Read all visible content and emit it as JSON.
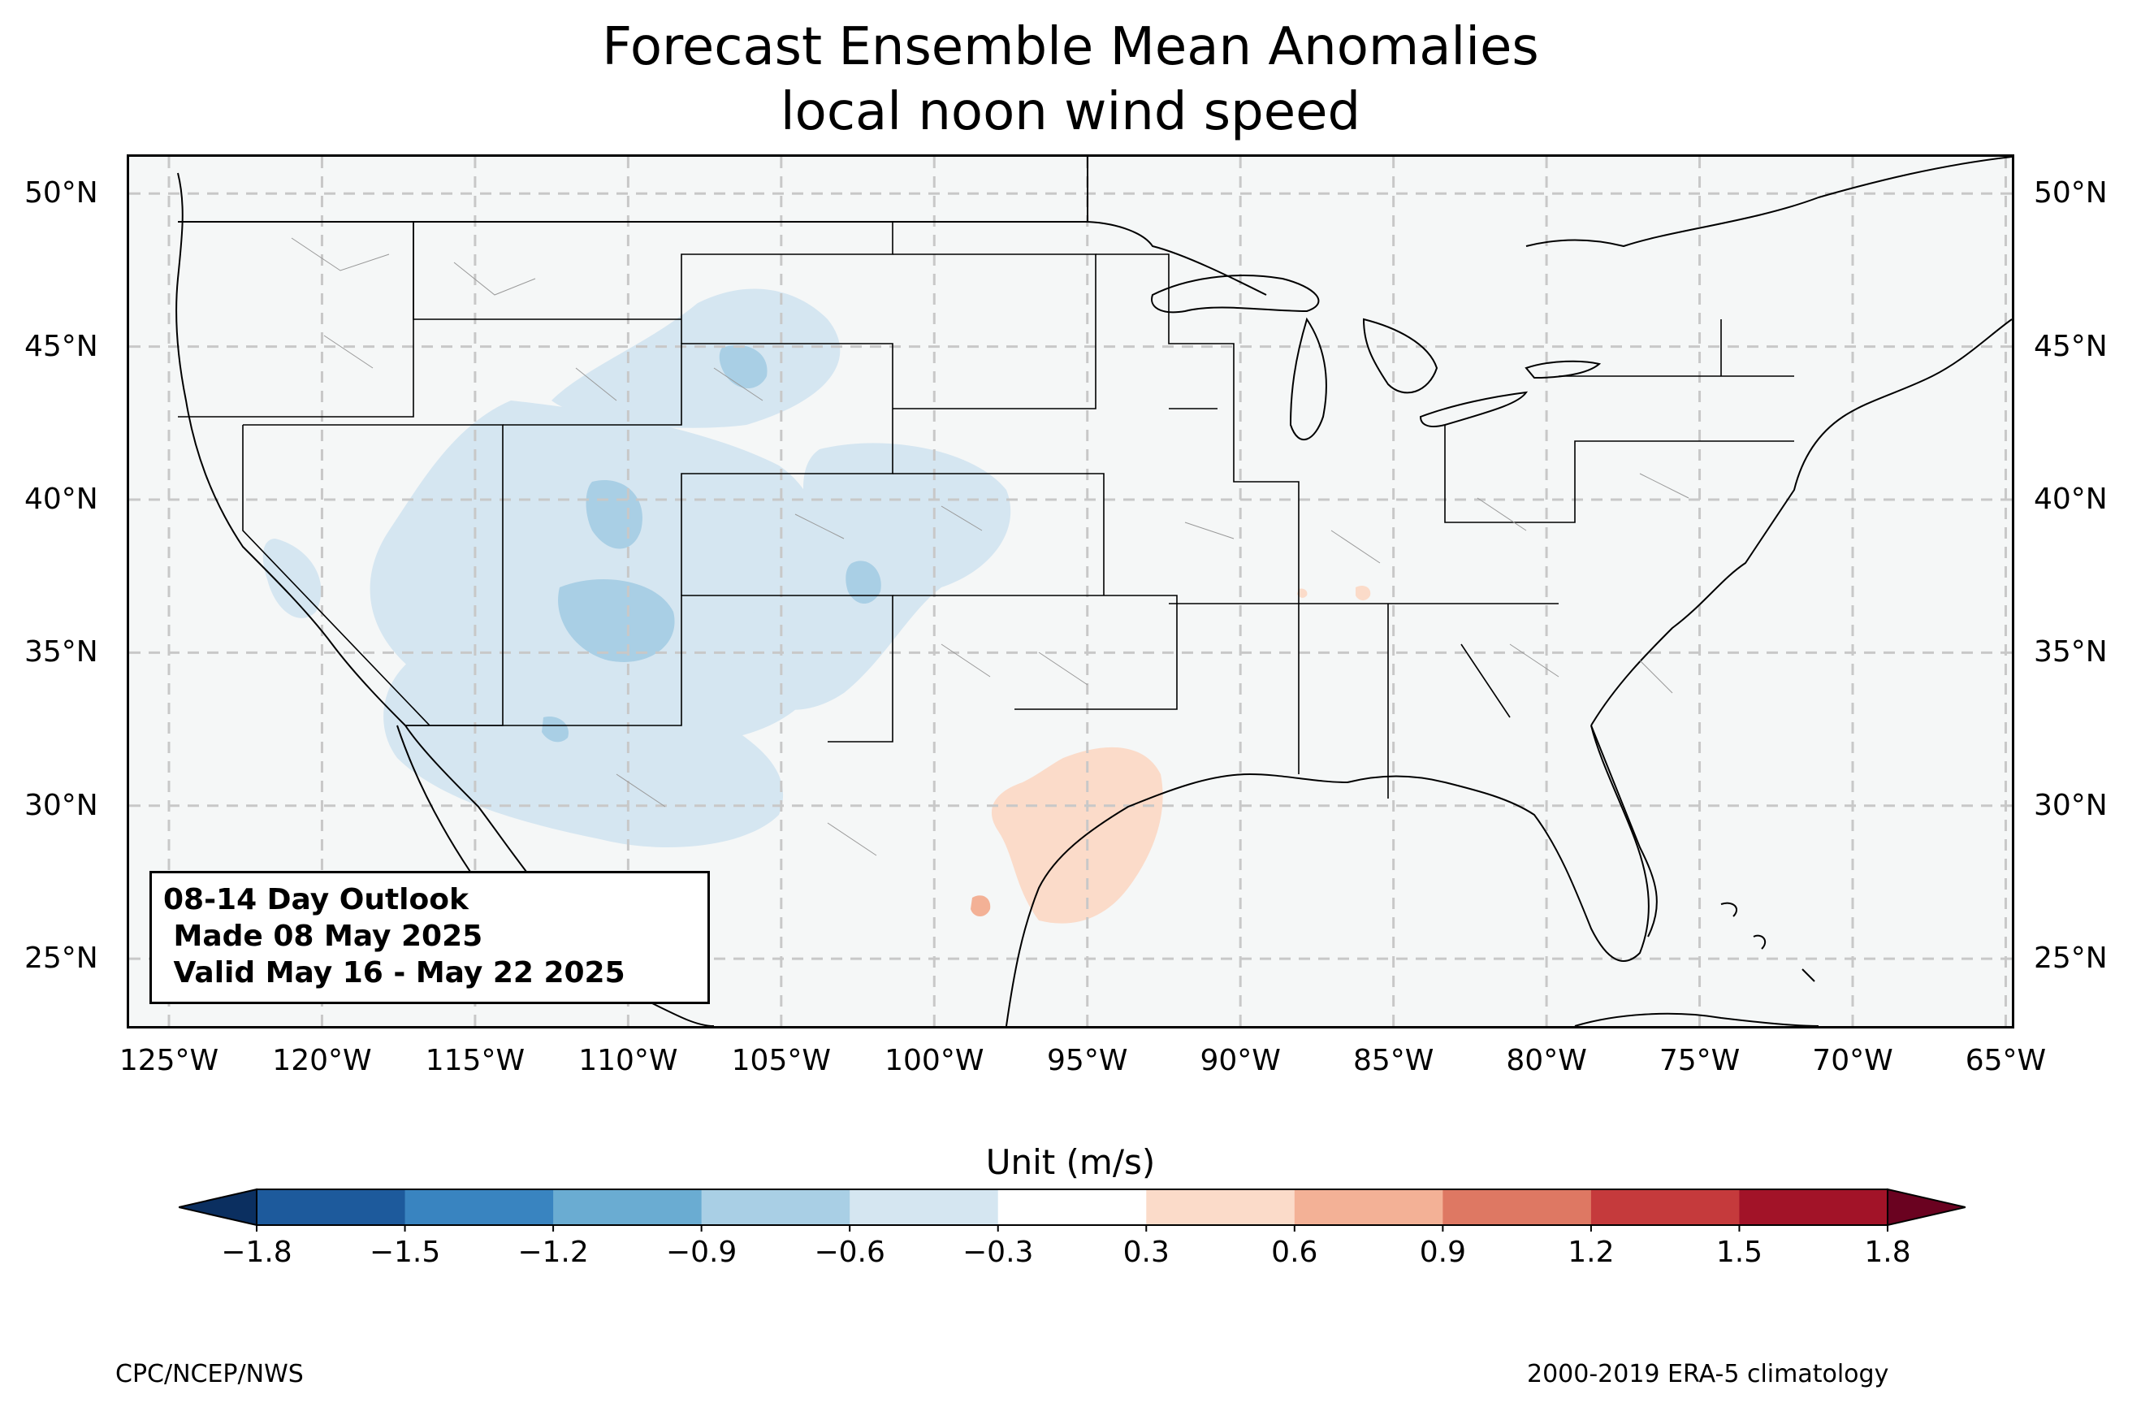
{
  "title": {
    "line1": "Forecast Ensemble Mean Anomalies",
    "line2": "local noon wind speed"
  },
  "map": {
    "lat_ticks": [
      "50°N",
      "45°N",
      "40°N",
      "35°N",
      "30°N",
      "25°N"
    ],
    "lon_ticks": [
      "125°W",
      "120°W",
      "115°W",
      "110°W",
      "105°W",
      "100°W",
      "95°W",
      "90°W",
      "85°W",
      "80°W",
      "75°W",
      "70°W",
      "65°W"
    ],
    "extent": {
      "lon_min": -126.3,
      "lon_max": -64.8,
      "lat_min": 22.8,
      "lat_max": 51.2
    },
    "background_color": "#f5f7f7"
  },
  "outlook": {
    "line1": "08-14 Day Outlook",
    "line2": " Made 08 May 2025",
    "line3": " Valid May 16 - May 22 2025"
  },
  "colorbar": {
    "label": "Unit (m/s)",
    "ticks": [
      "−1.8",
      "−1.5",
      "−1.2",
      "−0.9",
      "−0.6",
      "−0.3",
      "0.3",
      "0.6",
      "0.9",
      "1.2",
      "1.5",
      "1.8"
    ],
    "colors": [
      "#1d5a9c",
      "#3984c0",
      "#6aacd2",
      "#a9cfe5",
      "#d5e6f1",
      "#ffffff",
      "#fbdbc9",
      "#f3b196",
      "#de7863",
      "#c53a3c",
      "#a21328"
    ],
    "under_color": "#0b2f60",
    "over_color": "#6a0220"
  },
  "footer": {
    "left": "CPC/NCEP/NWS",
    "right": "2000-2019 ERA-5 climatology"
  }
}
